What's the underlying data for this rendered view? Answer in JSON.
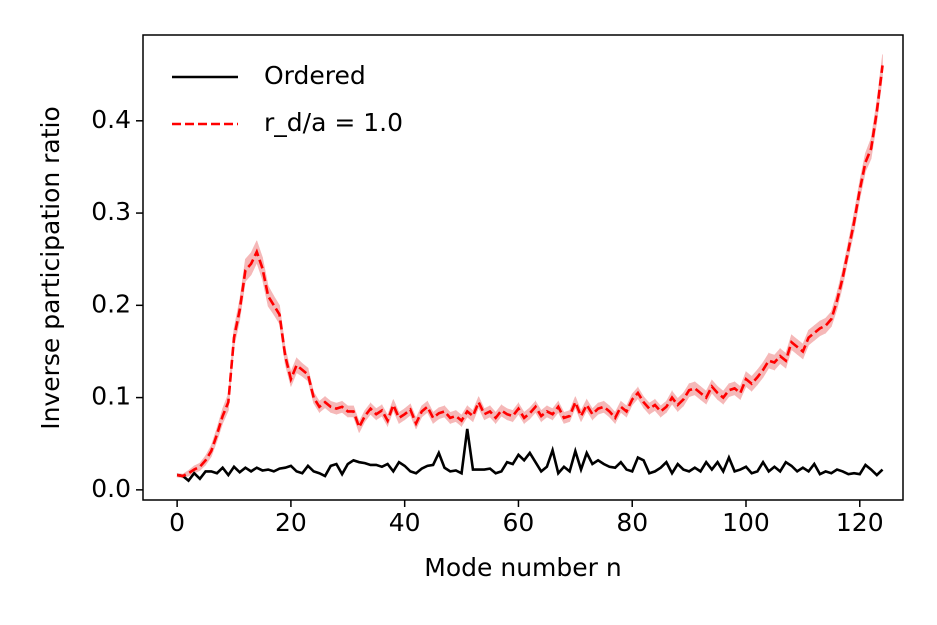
{
  "chart_data": {
    "type": "line",
    "xlabel": "Mode number n",
    "ylabel": "Inverse participation ratio",
    "x": [
      0,
      1,
      2,
      3,
      4,
      5,
      6,
      7,
      8,
      9,
      10,
      11,
      12,
      13,
      14,
      15,
      16,
      17,
      18,
      19,
      20,
      21,
      22,
      23,
      24,
      25,
      26,
      27,
      28,
      29,
      30,
      31,
      32,
      33,
      34,
      35,
      36,
      37,
      38,
      39,
      40,
      41,
      42,
      43,
      44,
      45,
      46,
      47,
      48,
      49,
      50,
      51,
      52,
      53,
      54,
      55,
      56,
      57,
      58,
      59,
      60,
      61,
      62,
      63,
      64,
      65,
      66,
      67,
      68,
      69,
      70,
      71,
      72,
      73,
      74,
      75,
      76,
      77,
      78,
      79,
      80,
      81,
      82,
      83,
      84,
      85,
      86,
      87,
      88,
      89,
      90,
      91,
      92,
      93,
      94,
      95,
      96,
      97,
      98,
      99,
      100,
      101,
      102,
      103,
      104,
      105,
      106,
      107,
      108,
      109,
      110,
      111,
      112,
      113,
      114,
      115,
      116,
      117,
      118,
      119,
      120,
      121,
      122,
      123,
      124
    ],
    "series": [
      {
        "name": "Ordered",
        "color": "#000000",
        "dash": false,
        "values": [
          0.016,
          0.015,
          0.01,
          0.018,
          0.012,
          0.02,
          0.02,
          0.018,
          0.024,
          0.016,
          0.025,
          0.019,
          0.024,
          0.02,
          0.024,
          0.021,
          0.022,
          0.02,
          0.023,
          0.024,
          0.026,
          0.02,
          0.018,
          0.026,
          0.02,
          0.018,
          0.015,
          0.026,
          0.028,
          0.017,
          0.028,
          0.032,
          0.03,
          0.029,
          0.027,
          0.027,
          0.025,
          0.028,
          0.02,
          0.03,
          0.026,
          0.02,
          0.018,
          0.023,
          0.026,
          0.027,
          0.04,
          0.024,
          0.02,
          0.021,
          0.018,
          0.066,
          0.022,
          0.022,
          0.022,
          0.023,
          0.018,
          0.02,
          0.03,
          0.028,
          0.038,
          0.032,
          0.04,
          0.03,
          0.02,
          0.025,
          0.043,
          0.018,
          0.025,
          0.02,
          0.042,
          0.022,
          0.04,
          0.028,
          0.032,
          0.028,
          0.025,
          0.024,
          0.03,
          0.022,
          0.02,
          0.035,
          0.032,
          0.018,
          0.02,
          0.024,
          0.03,
          0.018,
          0.028,
          0.022,
          0.02,
          0.024,
          0.02,
          0.03,
          0.022,
          0.03,
          0.02,
          0.035,
          0.02,
          0.022,
          0.025,
          0.018,
          0.02,
          0.03,
          0.02,
          0.025,
          0.02,
          0.03,
          0.026,
          0.02,
          0.024,
          0.02,
          0.028,
          0.017,
          0.02,
          0.018,
          0.022,
          0.02,
          0.017,
          0.018,
          0.017,
          0.027,
          0.022,
          0.016,
          0.022
        ]
      },
      {
        "name": "r_d/a = 1.0",
        "color": "#ff0000",
        "dash": true,
        "band_color": "#f5b8b8",
        "values": [
          0.016,
          0.015,
          0.018,
          0.022,
          0.025,
          0.032,
          0.042,
          0.06,
          0.08,
          0.095,
          0.165,
          0.195,
          0.238,
          0.245,
          0.258,
          0.24,
          0.21,
          0.2,
          0.19,
          0.145,
          0.12,
          0.135,
          0.13,
          0.125,
          0.1,
          0.09,
          0.095,
          0.09,
          0.088,
          0.09,
          0.085,
          0.085,
          0.068,
          0.08,
          0.088,
          0.082,
          0.086,
          0.075,
          0.092,
          0.078,
          0.082,
          0.087,
          0.072,
          0.085,
          0.09,
          0.078,
          0.083,
          0.085,
          0.078,
          0.08,
          0.075,
          0.085,
          0.08,
          0.095,
          0.082,
          0.085,
          0.078,
          0.086,
          0.082,
          0.08,
          0.088,
          0.078,
          0.083,
          0.09,
          0.08,
          0.085,
          0.082,
          0.09,
          0.078,
          0.08,
          0.095,
          0.08,
          0.092,
          0.082,
          0.088,
          0.09,
          0.085,
          0.078,
          0.09,
          0.085,
          0.098,
          0.105,
          0.095,
          0.088,
          0.092,
          0.085,
          0.09,
          0.1,
          0.092,
          0.098,
          0.108,
          0.11,
          0.105,
          0.1,
          0.112,
          0.105,
          0.1,
          0.108,
          0.11,
          0.105,
          0.12,
          0.115,
          0.122,
          0.13,
          0.14,
          0.138,
          0.145,
          0.14,
          0.16,
          0.155,
          0.15,
          0.165,
          0.17,
          0.175,
          0.178,
          0.185,
          0.205,
          0.23,
          0.26,
          0.29,
          0.325,
          0.355,
          0.37,
          0.41,
          0.46
        ],
        "error": [
          0.002,
          0.002,
          0.003,
          0.004,
          0.004,
          0.005,
          0.006,
          0.007,
          0.008,
          0.009,
          0.01,
          0.011,
          0.012,
          0.012,
          0.012,
          0.012,
          0.011,
          0.01,
          0.01,
          0.009,
          0.008,
          0.008,
          0.007,
          0.007,
          0.006,
          0.006,
          0.006,
          0.006,
          0.006,
          0.006,
          0.006,
          0.006,
          0.006,
          0.006,
          0.006,
          0.006,
          0.006,
          0.006,
          0.006,
          0.006,
          0.006,
          0.006,
          0.006,
          0.006,
          0.006,
          0.006,
          0.006,
          0.006,
          0.006,
          0.006,
          0.006,
          0.006,
          0.006,
          0.006,
          0.006,
          0.006,
          0.006,
          0.006,
          0.006,
          0.006,
          0.006,
          0.006,
          0.006,
          0.006,
          0.006,
          0.006,
          0.006,
          0.006,
          0.006,
          0.006,
          0.006,
          0.006,
          0.006,
          0.006,
          0.006,
          0.006,
          0.006,
          0.006,
          0.006,
          0.006,
          0.006,
          0.006,
          0.006,
          0.006,
          0.006,
          0.006,
          0.006,
          0.007,
          0.007,
          0.007,
          0.007,
          0.007,
          0.007,
          0.007,
          0.007,
          0.007,
          0.007,
          0.007,
          0.007,
          0.007,
          0.008,
          0.008,
          0.008,
          0.008,
          0.008,
          0.008,
          0.008,
          0.008,
          0.008,
          0.008,
          0.008,
          0.008,
          0.008,
          0.008,
          0.008,
          0.008,
          0.009,
          0.009,
          0.009,
          0.01,
          0.01,
          0.01,
          0.011,
          0.011,
          0.012
        ]
      }
    ],
    "xlim": [
      -6,
      127.6
    ],
    "xticks": [
      0,
      20,
      40,
      60,
      80,
      100,
      120
    ],
    "ylim": [
      -0.011,
      0.493
    ],
    "yticks": [
      0.0,
      0.1,
      0.2,
      0.3,
      0.4
    ],
    "grid": false,
    "legend": "upper left"
  }
}
